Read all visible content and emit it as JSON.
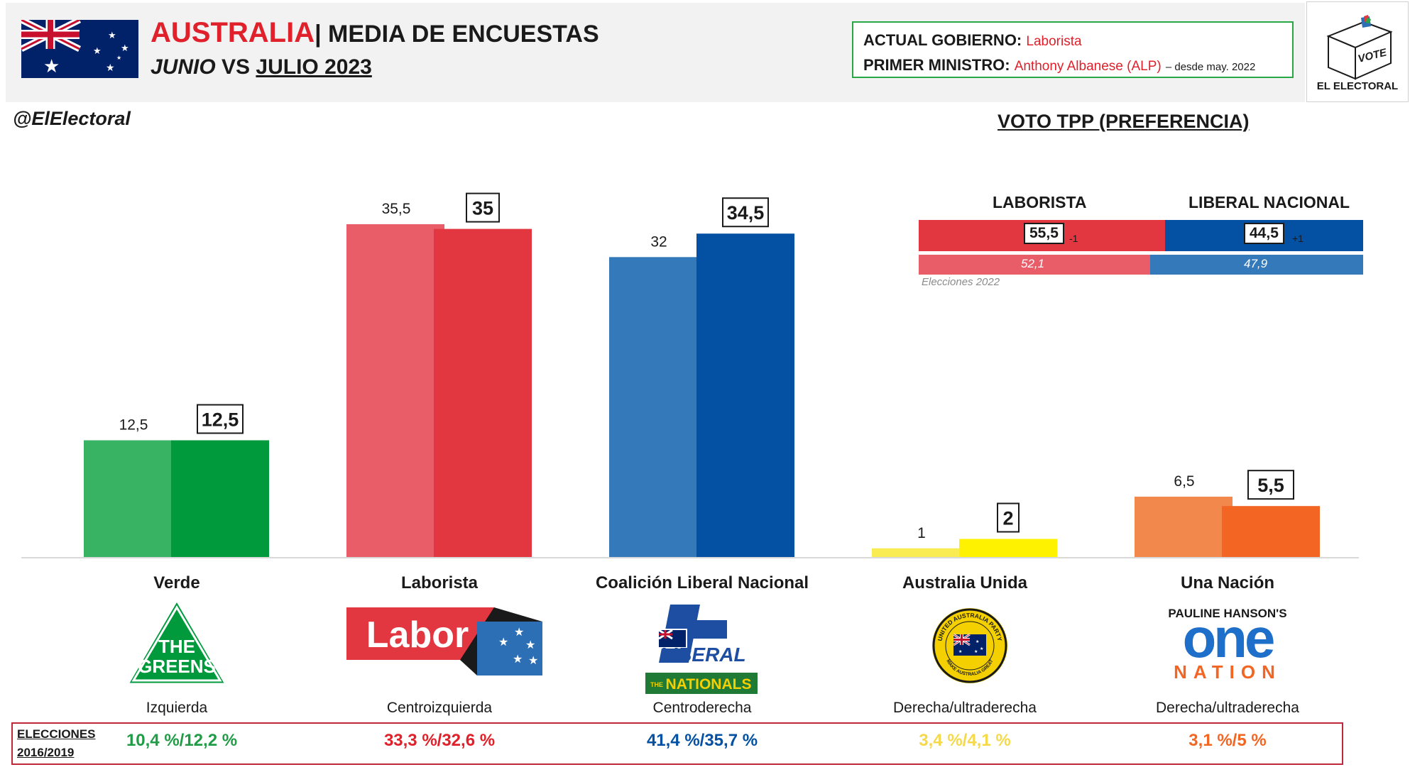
{
  "header": {
    "country": "AUSTRALIA",
    "title_rest": "| MEDIA DE ENCUESTAS",
    "month1": "JUNIO",
    "vs": "VS",
    "month2": "JULIO 2023",
    "gov_label": "ACTUAL GOBIERNO:",
    "gov_value": "Laborista",
    "pm_label": "PRIMER MINISTRO:",
    "pm_value": "Anthony Albanese (ALP)",
    "pm_note": "– desde may. 2022",
    "brand_vote": "VOTE",
    "brand_name": "EL ELECTORAL"
  },
  "handle": "@ElElectoral",
  "colors": {
    "verde_prev": "#38b263",
    "verde": "#009a3d",
    "labor_prev": "#e95d69",
    "labor": "#e23740",
    "lnp_prev": "#3479b9",
    "lnp": "#0451a3",
    "ua_prev": "#f9ec53",
    "ua": "#fff200",
    "on_prev": "#f3884d",
    "on": "#f26522",
    "tpp_labor": "#e23740",
    "tpp_labor_prev": "#e95d69",
    "tpp_lnp": "#0451a3",
    "tpp_lnp_prev": "#3479b9",
    "elections_box": "#c0283a"
  },
  "chart_data": {
    "type": "bar",
    "categories": [
      "Verde",
      "Laborista",
      "Coalición Liberal Nacional",
      "Australia Unida",
      "Una Nación"
    ],
    "series": [
      {
        "name": "JUNIO",
        "values": [
          12.5,
          35.5,
          32,
          1,
          6.5
        ],
        "labels": [
          "12,5",
          "35,5",
          "32",
          "1",
          "6,5"
        ]
      },
      {
        "name": "JULIO 2023",
        "values": [
          12.5,
          35,
          34.5,
          2,
          5.5
        ],
        "labels": [
          "12,5",
          "35",
          "34,5",
          "2",
          "5,5"
        ]
      }
    ],
    "ylim": [
      0,
      40
    ],
    "grid": false,
    "ideology": [
      "Izquierda",
      "Centroizquierda",
      "Centroderecha",
      "Derecha/ultraderecha",
      "Derecha/ultraderecha"
    ],
    "elections_label_1": "ELECCIONES",
    "elections_label_2": "2016/2019",
    "elections": [
      "10,4 %/12,2 %",
      "33,3 %/32,6 %",
      "41,4 %/35,7 %",
      "3,4 %/4,1 %",
      "3,1 %/5 %"
    ],
    "elections_colors": [
      "#1f9c45",
      "#e0202a",
      "#0451a3",
      "#f5d94a",
      "#f26522"
    ]
  },
  "tpp": {
    "title": "VOTO TPP (PREFERENCIA)",
    "labor_name": "LABORISTA",
    "lnp_name": "LIBERAL NACIONAL",
    "labor_value": 55.5,
    "labor_label": "55,5",
    "labor_change": "-1",
    "lnp_value": 44.5,
    "lnp_label": "44,5",
    "lnp_change": "+1",
    "labor_prev": 52.1,
    "labor_prev_label": "52,1",
    "lnp_prev": 47.9,
    "lnp_prev_label": "47,9",
    "prev_note": "Elecciones 2022"
  },
  "logos": {
    "greens_line1": "THE",
    "greens_line2": "GREENS",
    "labor": "Labor",
    "liberal": "LIBERAL",
    "nationals": "NATIONALS",
    "nationals_prefix": "THE",
    "uap_top": "UNITED AUSTRALIA PARTY",
    "uap_bottom": "MAKE AUSTRALIA GREAT",
    "on_line1": "PAULINE HANSON'S",
    "on_line2": "one",
    "on_line3": "NATION"
  }
}
